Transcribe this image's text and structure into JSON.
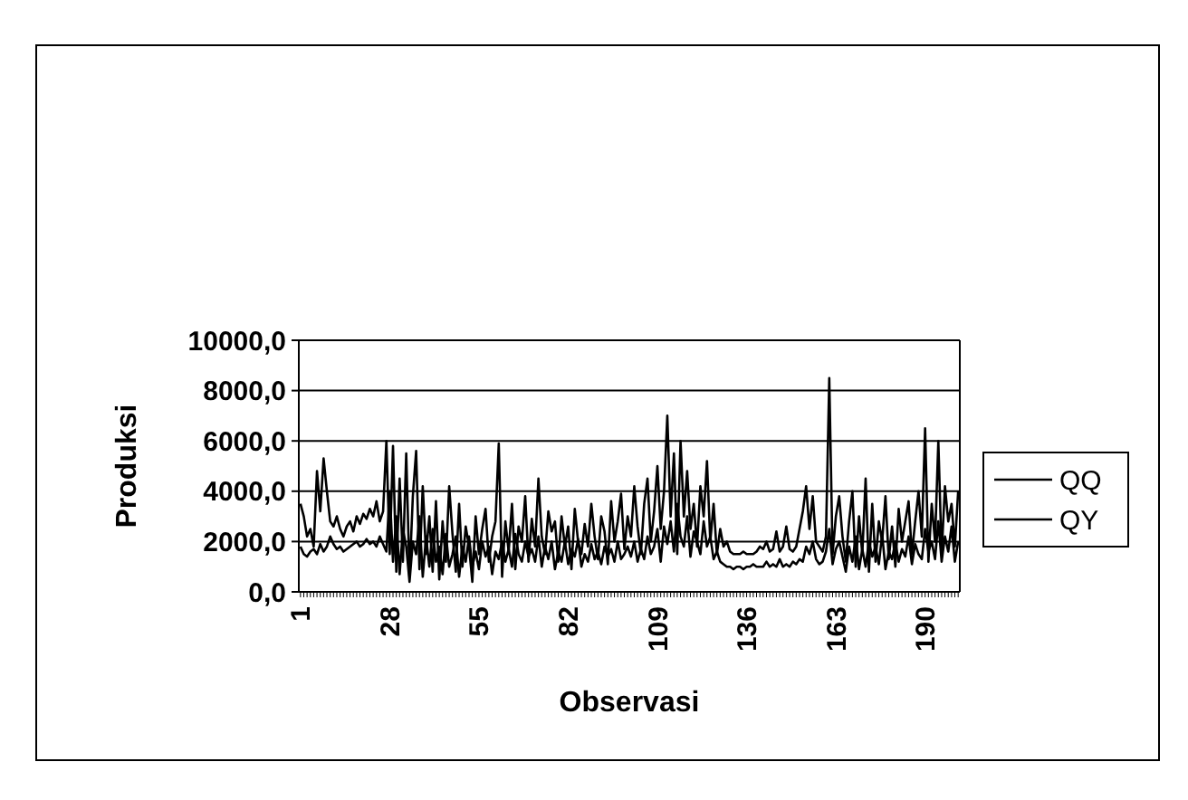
{
  "chart_data": {
    "type": "line",
    "xlabel": "Observasi",
    "ylabel": "Produksi",
    "categories": [
      "1",
      null,
      null,
      null,
      null,
      null,
      null,
      null,
      null,
      null,
      null,
      null,
      null,
      null,
      null,
      null,
      null,
      null,
      null,
      null,
      null,
      null,
      null,
      null,
      null,
      null,
      null,
      "28",
      null,
      null,
      null,
      null,
      null,
      null,
      null,
      null,
      null,
      null,
      null,
      null,
      null,
      null,
      null,
      null,
      null,
      null,
      null,
      null,
      null,
      null,
      null,
      null,
      null,
      null,
      "55",
      null,
      null,
      null,
      null,
      null,
      null,
      null,
      null,
      null,
      null,
      null,
      null,
      null,
      null,
      null,
      null,
      null,
      null,
      null,
      null,
      null,
      null,
      null,
      null,
      null,
      null,
      "82",
      null,
      null,
      null,
      null,
      null,
      null,
      null,
      null,
      null,
      null,
      null,
      null,
      null,
      null,
      null,
      null,
      null,
      null,
      null,
      null,
      null,
      null,
      null,
      null,
      null,
      null,
      "109",
      null,
      null,
      null,
      null,
      null,
      null,
      null,
      null,
      null,
      null,
      null,
      null,
      null,
      null,
      null,
      null,
      null,
      null,
      null,
      null,
      null,
      null,
      null,
      null,
      null,
      null,
      "136",
      null,
      null,
      null,
      null,
      null,
      null,
      null,
      null,
      null,
      null,
      null,
      null,
      null,
      null,
      null,
      null,
      null,
      null,
      null,
      null,
      null,
      null,
      null,
      null,
      null,
      null,
      "163",
      null,
      null,
      null,
      null,
      null,
      null,
      null,
      null,
      null,
      null,
      null,
      null,
      null,
      null,
      null,
      null,
      null,
      null,
      null,
      null,
      null,
      null,
      null,
      null,
      null,
      null,
      "190",
      null,
      null,
      null,
      null,
      null,
      null,
      null,
      null,
      null,
      null
    ],
    "series": [
      {
        "name": "QQ",
        "color": "#000000",
        "values": [
          1800,
          1500,
          1400,
          1600,
          1700,
          1500,
          1900,
          1600,
          1800,
          2200,
          1900,
          1700,
          1800,
          1600,
          1700,
          1800,
          1900,
          2000,
          1800,
          1900,
          2100,
          1900,
          2000,
          1800,
          2200,
          1900,
          1600,
          4000,
          1200,
          3000,
          700,
          2500,
          1800,
          400,
          2000,
          1500,
          3000,
          600,
          2200,
          1000,
          2500,
          1200,
          1800,
          700,
          2300,
          1000,
          1500,
          2200,
          600,
          1800,
          1200,
          2200,
          1000,
          1600,
          900,
          2000,
          1400,
          1800,
          700,
          1600,
          1300,
          2000,
          1200,
          1700,
          1000,
          2300,
          1500,
          1200,
          2000,
          1400,
          1700,
          1200,
          2200,
          1000,
          1800,
          1300,
          2000,
          900,
          1600,
          1200,
          2000,
          1100,
          1700,
          1400,
          2100,
          1000,
          1500,
          1200,
          1900,
          1300,
          1600,
          1100,
          1800,
          1400,
          1700,
          1200,
          2000,
          1300,
          1500,
          1800,
          1400,
          2000,
          1200,
          1700,
          1300,
          2200,
          1500,
          1800,
          2500,
          1200,
          2600,
          1900,
          2800,
          1600,
          3500,
          2200,
          1800,
          3000,
          1400,
          2400,
          2000,
          1500,
          2800,
          1800,
          2200,
          1300,
          1600,
          1200,
          1100,
          1000,
          1000,
          900,
          1000,
          1000,
          900,
          1000,
          1000,
          1100,
          1000,
          1000,
          1000,
          1200,
          1000,
          1100,
          1000,
          1300,
          1000,
          1100,
          1000,
          1200,
          1100,
          1300,
          1200,
          1800,
          1500,
          2000,
          1300,
          1100,
          1200,
          1600,
          2500,
          1100,
          1700,
          2000,
          1400,
          800,
          1800,
          1200,
          2200,
          900,
          1700,
          1000,
          2000,
          1400,
          1800,
          1100,
          2300,
          900,
          1600,
          1300,
          2000,
          1200,
          1700,
          1400,
          2200,
          1100,
          1900,
          1500,
          1300,
          2500,
          1600,
          2000,
          1300,
          2800,
          1200,
          2200,
          1600,
          2600,
          1200,
          2000
        ]
      },
      {
        "name": "QY",
        "color": "#000000",
        "values": [
          3500,
          3000,
          2200,
          2500,
          1800,
          4800,
          3200,
          5300,
          4000,
          2800,
          2600,
          3000,
          2500,
          2200,
          2600,
          2800,
          2400,
          3000,
          2700,
          3100,
          2900,
          3300,
          3000,
          3600,
          2800,
          3200,
          6000,
          1500,
          5800,
          800,
          4500,
          1200,
          5500,
          600,
          3800,
          5600,
          900,
          4200,
          1500,
          3000,
          800,
          3600,
          500,
          2800,
          1200,
          4200,
          2300,
          800,
          3500,
          1000,
          2600,
          1800,
          400,
          3000,
          1500,
          2500,
          3300,
          1200,
          2200,
          2800,
          5900,
          600,
          2800,
          1600,
          3500,
          900,
          2600,
          2000,
          3800,
          1200,
          2900,
          1800,
          4500,
          2200,
          1500,
          3200,
          2400,
          2800,
          1200,
          3000,
          1800,
          2600,
          900,
          3300,
          2000,
          1500,
          2700,
          1800,
          3500,
          2200,
          1300,
          3000,
          2400,
          1100,
          3600,
          2000,
          2800,
          3900,
          1700,
          3000,
          2200,
          4200,
          2600,
          1500,
          3500,
          4500,
          2000,
          3200,
          5000,
          2500,
          4000,
          7000,
          3000,
          5500,
          1500,
          6000,
          3000,
          4800,
          2500,
          3500,
          1800,
          4200,
          3000,
          5200,
          2000,
          3500,
          1500,
          2500,
          1800,
          2000,
          1600,
          1500,
          1500,
          1500,
          1600,
          1500,
          1500,
          1500,
          1600,
          1800,
          1700,
          2000,
          1600,
          1700,
          2400,
          1600,
          1800,
          2600,
          1700,
          1600,
          1800,
          2500,
          3200,
          4200,
          2500,
          3800,
          2000,
          1800,
          1600,
          2200,
          8500,
          1500,
          3000,
          3800,
          2200,
          1200,
          2800,
          4000,
          1000,
          3000,
          1500,
          4500,
          800,
          3500,
          1200,
          2800,
          2000,
          3800,
          1300,
          2600,
          1000,
          3300,
          2000,
          2800,
          3600,
          1500,
          2800,
          4000,
          2200,
          6500,
          1200,
          3500,
          2000,
          6000,
          1500,
          4200,
          2800,
          3500,
          1800,
          4000
        ]
      }
    ],
    "ylim": [
      0,
      10000
    ],
    "yticks": [
      {
        "value": 0,
        "label": "0,0"
      },
      {
        "value": 2000,
        "label": "2000,0"
      },
      {
        "value": 4000,
        "label": "4000,0"
      },
      {
        "value": 6000,
        "label": "6000,0"
      },
      {
        "value": 8000,
        "label": "8000,0"
      },
      {
        "value": 10000,
        "label": "10000,0"
      }
    ],
    "grid": "y",
    "legend": "right",
    "marker": "none",
    "line_style": "solid"
  }
}
